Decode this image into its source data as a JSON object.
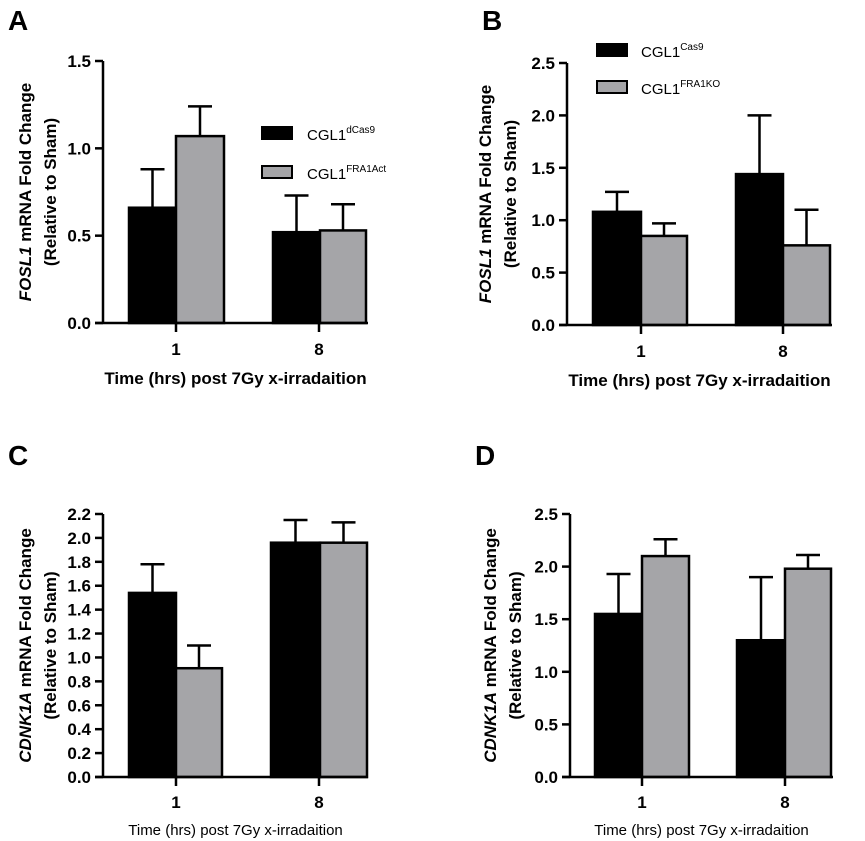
{
  "chart_data": [
    {
      "type": "bar",
      "panel": "A",
      "ylabel_gene": "FOSL1",
      "ylabel_rest": " mRNA Fold Change",
      "ylabel_line2": "(Relative to Sham)",
      "xlabel": "Time (hrs) post 7Gy x-irradaition",
      "categories": [
        "1",
        "8"
      ],
      "ylim": [
        0,
        1.5
      ],
      "yticks": [
        "0.0",
        "0.5",
        "1.0",
        "1.5"
      ],
      "ytick_values": [
        0,
        0.5,
        1.0,
        1.5
      ],
      "legend_position": "right",
      "series": [
        {
          "name_base": "CGL1",
          "name_sup": "dCas9",
          "color": "#000000",
          "values": [
            0.66,
            0.52
          ],
          "errors": [
            0.22,
            0.21
          ]
        },
        {
          "name_base": "CGL1",
          "name_sup": "FRA1Act",
          "color": "#a5a5a8",
          "values": [
            1.07,
            0.53
          ],
          "errors": [
            0.17,
            0.15
          ]
        }
      ]
    },
    {
      "type": "bar",
      "panel": "B",
      "ylabel_gene": "FOSL1",
      "ylabel_rest": " mRNA Fold Change",
      "ylabel_line2": "(Relative to Sham)",
      "xlabel": "Time (hrs) post 7Gy x-irradaition",
      "categories": [
        "1",
        "8"
      ],
      "ylim": [
        0,
        2.5
      ],
      "yticks": [
        "0.0",
        "0.5",
        "1.0",
        "1.5",
        "2.0",
        "2.5"
      ],
      "ytick_values": [
        0,
        0.5,
        1.0,
        1.5,
        2.0,
        2.5
      ],
      "legend_position": "top",
      "series": [
        {
          "name_base": "CGL1",
          "name_sup": "Cas9",
          "color": "#000000",
          "values": [
            1.08,
            1.44
          ],
          "errors": [
            0.19,
            0.56
          ]
        },
        {
          "name_base": "CGL1",
          "name_sup": "FRA1KO",
          "color": "#a5a5a8",
          "values": [
            0.85,
            0.76
          ],
          "errors": [
            0.12,
            0.34
          ]
        }
      ]
    },
    {
      "type": "bar",
      "panel": "C",
      "ylabel_gene": "CDNK1A",
      "ylabel_rest": " mRNA Fold Change",
      "ylabel_line2": "(Relative to Sham)",
      "xlabel": "Time (hrs) post 7Gy x-irradaition",
      "categories": [
        "1",
        "8"
      ],
      "ylim": [
        0,
        2.2
      ],
      "yticks": [
        "0.0",
        "0.2",
        "0.4",
        "0.6",
        "0.8",
        "1.0",
        "1.2",
        "1.4",
        "1.6",
        "1.8",
        "2.0",
        "2.2"
      ],
      "ytick_values": [
        0,
        0.2,
        0.4,
        0.6,
        0.8,
        1.0,
        1.2,
        1.4,
        1.6,
        1.8,
        2.0,
        2.2
      ],
      "series": [
        {
          "color": "#000000",
          "values": [
            1.54,
            1.96
          ],
          "errors": [
            0.24,
            0.19
          ]
        },
        {
          "color": "#a5a5a8",
          "values": [
            0.91,
            1.96
          ],
          "errors": [
            0.19,
            0.17
          ]
        }
      ]
    },
    {
      "type": "bar",
      "panel": "D",
      "ylabel_gene": "CDNK1A",
      "ylabel_rest": " mRNA Fold Change",
      "ylabel_line2": "(Relative to Sham)",
      "xlabel": "Time (hrs) post 7Gy x-irradaition",
      "categories": [
        "1",
        "8"
      ],
      "ylim": [
        0,
        2.5
      ],
      "yticks": [
        "0.0",
        "0.5",
        "1.0",
        "1.5",
        "2.0",
        "2.5"
      ],
      "ytick_values": [
        0,
        0.5,
        1.0,
        1.5,
        2.0,
        2.5
      ],
      "series": [
        {
          "color": "#000000",
          "values": [
            1.55,
            1.3
          ],
          "errors": [
            0.38,
            0.6
          ]
        },
        {
          "color": "#a5a5a8",
          "values": [
            2.1,
            1.98
          ],
          "errors": [
            0.16,
            0.13
          ]
        }
      ]
    }
  ]
}
